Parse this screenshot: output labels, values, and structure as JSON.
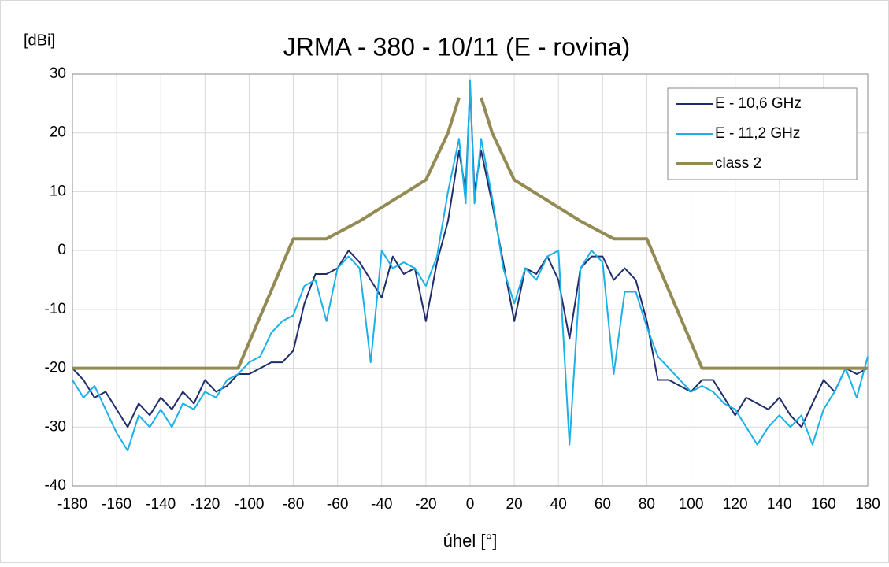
{
  "chart_data": {
    "type": "line",
    "title": "JRMA - 380 - 10/11 (E - rovina)",
    "y_label": "[dBi]",
    "x_label": "úhel [°]",
    "x": [
      -180,
      -175,
      -170,
      -165,
      -160,
      -155,
      -150,
      -145,
      -140,
      -135,
      -130,
      -125,
      -120,
      -115,
      -110,
      -105,
      -100,
      -95,
      -90,
      -85,
      -80,
      -75,
      -70,
      -65,
      -60,
      -55,
      -50,
      -45,
      -40,
      -35,
      -30,
      -25,
      -20,
      -15,
      -10,
      -5,
      -2,
      0,
      2,
      5,
      10,
      15,
      20,
      25,
      30,
      35,
      40,
      45,
      50,
      55,
      60,
      65,
      70,
      75,
      80,
      85,
      90,
      95,
      100,
      105,
      110,
      115,
      120,
      125,
      130,
      135,
      140,
      145,
      150,
      155,
      160,
      165,
      170,
      175,
      180
    ],
    "series": [
      {
        "name": "E - 10,6 GHz",
        "color": "#1f2d6b",
        "width": 2,
        "values": [
          -20,
          -22,
          -25,
          -24,
          -27,
          -30,
          -26,
          -28,
          -25,
          -27,
          -24,
          -26,
          -22,
          -24,
          -23,
          -21,
          -21,
          -20,
          -19,
          -19,
          -17,
          -9,
          -4,
          -4,
          -3,
          0,
          -2,
          -5,
          -8,
          -1,
          -4,
          -3,
          -12,
          -2,
          5,
          17,
          10,
          28,
          10,
          17,
          8,
          -2,
          -12,
          -3,
          -4,
          -1,
          -5,
          -15,
          -3,
          -1,
          -1,
          -5,
          -3,
          -5,
          -12,
          -22,
          -22,
          -23,
          -24,
          -22,
          -22,
          -25,
          -28,
          -25,
          -26,
          -27,
          -25,
          -28,
          -30,
          -26,
          -22,
          -24,
          -20,
          -21,
          -20
        ]
      },
      {
        "name": "E - 11,2 GHz",
        "color": "#1ab0e8",
        "width": 2,
        "values": [
          -22,
          -25,
          -23,
          -27,
          -31,
          -34,
          -28,
          -30,
          -27,
          -30,
          -26,
          -27,
          -24,
          -25,
          -22,
          -21,
          -19,
          -18,
          -14,
          -12,
          -11,
          -6,
          -5,
          -12,
          -3,
          -1,
          -3,
          -19,
          0,
          -3,
          -2,
          -3,
          -6,
          -1,
          10,
          19,
          8,
          29,
          8,
          19,
          9,
          -3,
          -9,
          -3,
          -5,
          -1,
          0,
          -33,
          -3,
          0,
          -2,
          -21,
          -7,
          -7,
          -13,
          -18,
          -20,
          -22,
          -24,
          -23,
          -24,
          -26,
          -27,
          -30,
          -33,
          -30,
          -28,
          -30,
          -28,
          -33,
          -27,
          -24,
          -20,
          -25,
          -18
        ]
      },
      {
        "name": "class 2",
        "color": "#948a54",
        "width": 4,
        "x": [
          -180,
          -105,
          -80,
          -65,
          -50,
          -20,
          -10,
          -5,
          0,
          5,
          10,
          20,
          50,
          65,
          80,
          105,
          180
        ],
        "values": [
          -20,
          -20,
          2,
          2,
          5,
          12,
          20,
          26,
          null,
          26,
          20,
          12,
          5,
          2,
          2,
          -20,
          -20
        ]
      }
    ],
    "xlim": [
      -180,
      180
    ],
    "xticks": [
      -180,
      -160,
      -140,
      -120,
      -100,
      -80,
      -60,
      -40,
      -20,
      0,
      20,
      40,
      60,
      80,
      100,
      120,
      140,
      160,
      180
    ],
    "ylim": [
      -40,
      30
    ],
    "yticks": [
      -40,
      -30,
      -20,
      -10,
      0,
      10,
      20,
      30
    ],
    "grid": true,
    "legend": "upper right"
  }
}
